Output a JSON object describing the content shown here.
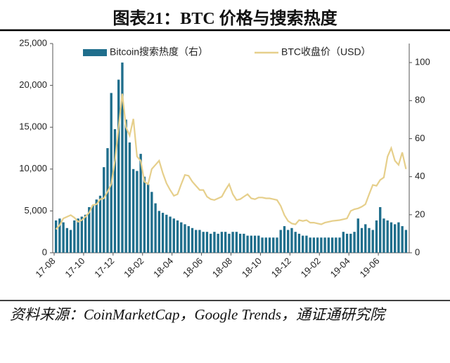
{
  "chart_data": {
    "type": "bar_line",
    "title": "图表21：BTC 价格与搜索热度",
    "source": "资料来源：CoinMarketCap，Google Trends，通证通研究院",
    "categories": [
      "17-08",
      null,
      null,
      null,
      null,
      null,
      null,
      null,
      "17-10",
      null,
      null,
      null,
      null,
      null,
      null,
      null,
      "17-12",
      null,
      null,
      null,
      null,
      null,
      null,
      null,
      "18-02",
      null,
      null,
      null,
      null,
      null,
      null,
      null,
      "18-04",
      null,
      null,
      null,
      null,
      null,
      null,
      null,
      "18-06",
      null,
      null,
      null,
      null,
      null,
      null,
      null,
      "18-08",
      null,
      null,
      null,
      null,
      null,
      null,
      null,
      "18-10",
      null,
      null,
      null,
      null,
      null,
      null,
      null,
      "18-12",
      null,
      null,
      null,
      null,
      null,
      null,
      null,
      "19-02",
      null,
      null,
      null,
      null,
      null,
      null,
      null,
      "19-04",
      null,
      null,
      null,
      null,
      null,
      null,
      null,
      "19-06",
      null,
      null,
      null,
      null,
      null,
      null,
      null
    ],
    "series": [
      {
        "name": "Bitcoin搜索热度（右）",
        "type": "bar",
        "axis": "y2",
        "color": "#1f6e8c",
        "values": [
          17,
          18,
          16,
          13,
          12,
          17,
          18,
          19,
          20,
          24,
          25,
          28,
          30,
          45,
          55,
          84,
          65,
          91,
          100,
          70,
          58,
          44,
          43,
          52,
          40,
          36,
          32,
          26,
          22,
          21,
          20,
          19,
          18,
          17,
          16,
          15,
          14,
          13,
          12,
          12,
          11,
          11,
          10,
          11,
          10,
          11,
          11,
          10,
          11,
          11,
          10,
          10,
          9,
          9,
          9,
          9,
          8,
          8,
          8,
          8,
          8,
          12,
          14,
          12,
          13,
          11,
          10,
          9,
          9,
          8,
          8,
          8,
          8,
          8,
          8,
          8,
          8,
          8,
          11,
          10,
          10,
          11,
          18,
          13,
          15,
          13,
          12,
          17,
          24,
          18,
          17,
          16,
          15,
          16,
          14,
          12
        ]
      },
      {
        "name": "BTC收盘价（USD）",
        "type": "line",
        "color": "#e6cf8b",
        "values": [
          2800,
          3300,
          4100,
          4300,
          4500,
          4200,
          3700,
          3900,
          4300,
          4800,
          5700,
          5800,
          6400,
          6500,
          7300,
          8200,
          11000,
          15000,
          19000,
          15000,
          14000,
          16000,
          11500,
          11000,
          8500,
          8200,
          10000,
          10500,
          11000,
          9500,
          8300,
          7500,
          6800,
          7000,
          8200,
          9300,
          9200,
          8500,
          8000,
          7500,
          7500,
          6700,
          6400,
          6300,
          6500,
          6700,
          7500,
          8200,
          7000,
          6300,
          6400,
          6700,
          7000,
          6500,
          6400,
          6600,
          6600,
          6500,
          6500,
          6400,
          6300,
          5600,
          4500,
          3800,
          3500,
          3400,
          3900,
          3800,
          3900,
          3600,
          3600,
          3500,
          3400,
          3600,
          3700,
          3800,
          3850,
          3900,
          4000,
          4100,
          5000,
          5200,
          5300,
          5500,
          5800,
          7000,
          8100,
          8000,
          8700,
          9000,
          11500,
          12500,
          11000,
          10500,
          12000,
          10000
        ]
      }
    ],
    "ylim": [
      0,
      25000
    ],
    "yticks": [
      0,
      {
        "value": 5000,
        "label": "5,000"
      },
      {
        "value": 10000,
        "label": "10,000"
      },
      {
        "value": 15000,
        "label": "15,000"
      },
      {
        "value": 20000,
        "label": "20,000"
      },
      {
        "value": 25000,
        "label": "25,000"
      }
    ],
    "y2lim": [
      0,
      110
    ],
    "y2ticks": [
      0,
      20,
      40,
      60,
      80,
      100
    ],
    "legend": "top"
  }
}
